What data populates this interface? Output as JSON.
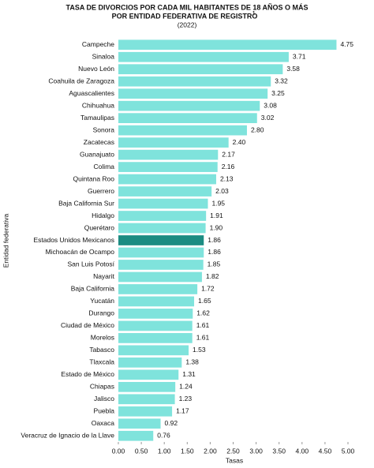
{
  "chart_data": {
    "type": "bar",
    "orientation": "horizontal",
    "title": [
      "TASA DE DIVORCIOS POR CADA MIL HABITANTES DE 18 AÑOS O MÁS",
      "POR ENTIDAD FEDERATIVA DE REGISTRO"
    ],
    "title_note": "1",
    "subtitle": "(2022)",
    "xlabel": "Tasas",
    "ylabel": "Entidad federativa",
    "categories": [
      "Campeche",
      "Sinaloa",
      "Nuevo León",
      "Coahuila de Zaragoza",
      "Aguascalientes",
      "Chihuahua",
      "Tamaulipas",
      "Sonora",
      "Zacatecas",
      "Guanajuato",
      "Colima",
      "Quintana Roo",
      "Guerrero",
      "Baja California Sur",
      "Hidalgo",
      "Querétaro",
      "Estados Unidos Mexicanos",
      "Michoacán de Ocampo",
      "San Luis Potosí",
      "Nayarit",
      "Baja California",
      "Yucatán",
      "Durango",
      "Ciudad de México",
      "Morelos",
      "Tabasco",
      "Tlaxcala",
      "Estado de México",
      "Chiapas",
      "Jalisco",
      "Puebla",
      "Oaxaca",
      "Veracruz de Ignacio de la Llave"
    ],
    "values": [
      4.75,
      3.71,
      3.58,
      3.32,
      3.25,
      3.08,
      3.02,
      2.8,
      2.4,
      2.17,
      2.16,
      2.13,
      2.03,
      1.95,
      1.91,
      1.9,
      1.86,
      1.86,
      1.85,
      1.82,
      1.72,
      1.65,
      1.62,
      1.61,
      1.61,
      1.53,
      1.38,
      1.31,
      1.24,
      1.23,
      1.17,
      0.92,
      0.76
    ],
    "value_labels": [
      "4.75",
      "3.71",
      "3.58",
      "3.32",
      "3.25",
      "3.08",
      "3.02",
      "2.80",
      "2.40",
      "2.17",
      "2.16",
      "2.13",
      "2.03",
      "1.95",
      "1.91",
      "1.90",
      "1.86",
      "1.86",
      "1.85",
      "1.82",
      "1.72",
      "1.65",
      "1.62",
      "1.61",
      "1.61",
      "1.53",
      "1.38",
      "1.31",
      "1.24",
      "1.23",
      "1.17",
      "0.92",
      "0.76"
    ],
    "color": "#7fe3dc",
    "highlight": {
      "index": 16,
      "color": "#1b8c82"
    },
    "xlim": [
      0,
      5
    ],
    "xticks": [
      {
        "value": 0,
        "label": "0.00"
      },
      {
        "value": 0.5,
        "label": "0.50"
      },
      {
        "value": 1,
        "label": "1.00"
      },
      {
        "value": 1.5,
        "label": "1.50"
      },
      {
        "value": 2,
        "label": "2.00"
      },
      {
        "value": 2.5,
        "label": "2.50"
      },
      {
        "value": 3,
        "label": "3.00"
      },
      {
        "value": 3.5,
        "label": "3.50"
      },
      {
        "value": 4,
        "label": "4.00"
      },
      {
        "value": 4.5,
        "label": "4.50"
      },
      {
        "value": 5,
        "label": "5.00"
      }
    ],
    "grid": false
  }
}
